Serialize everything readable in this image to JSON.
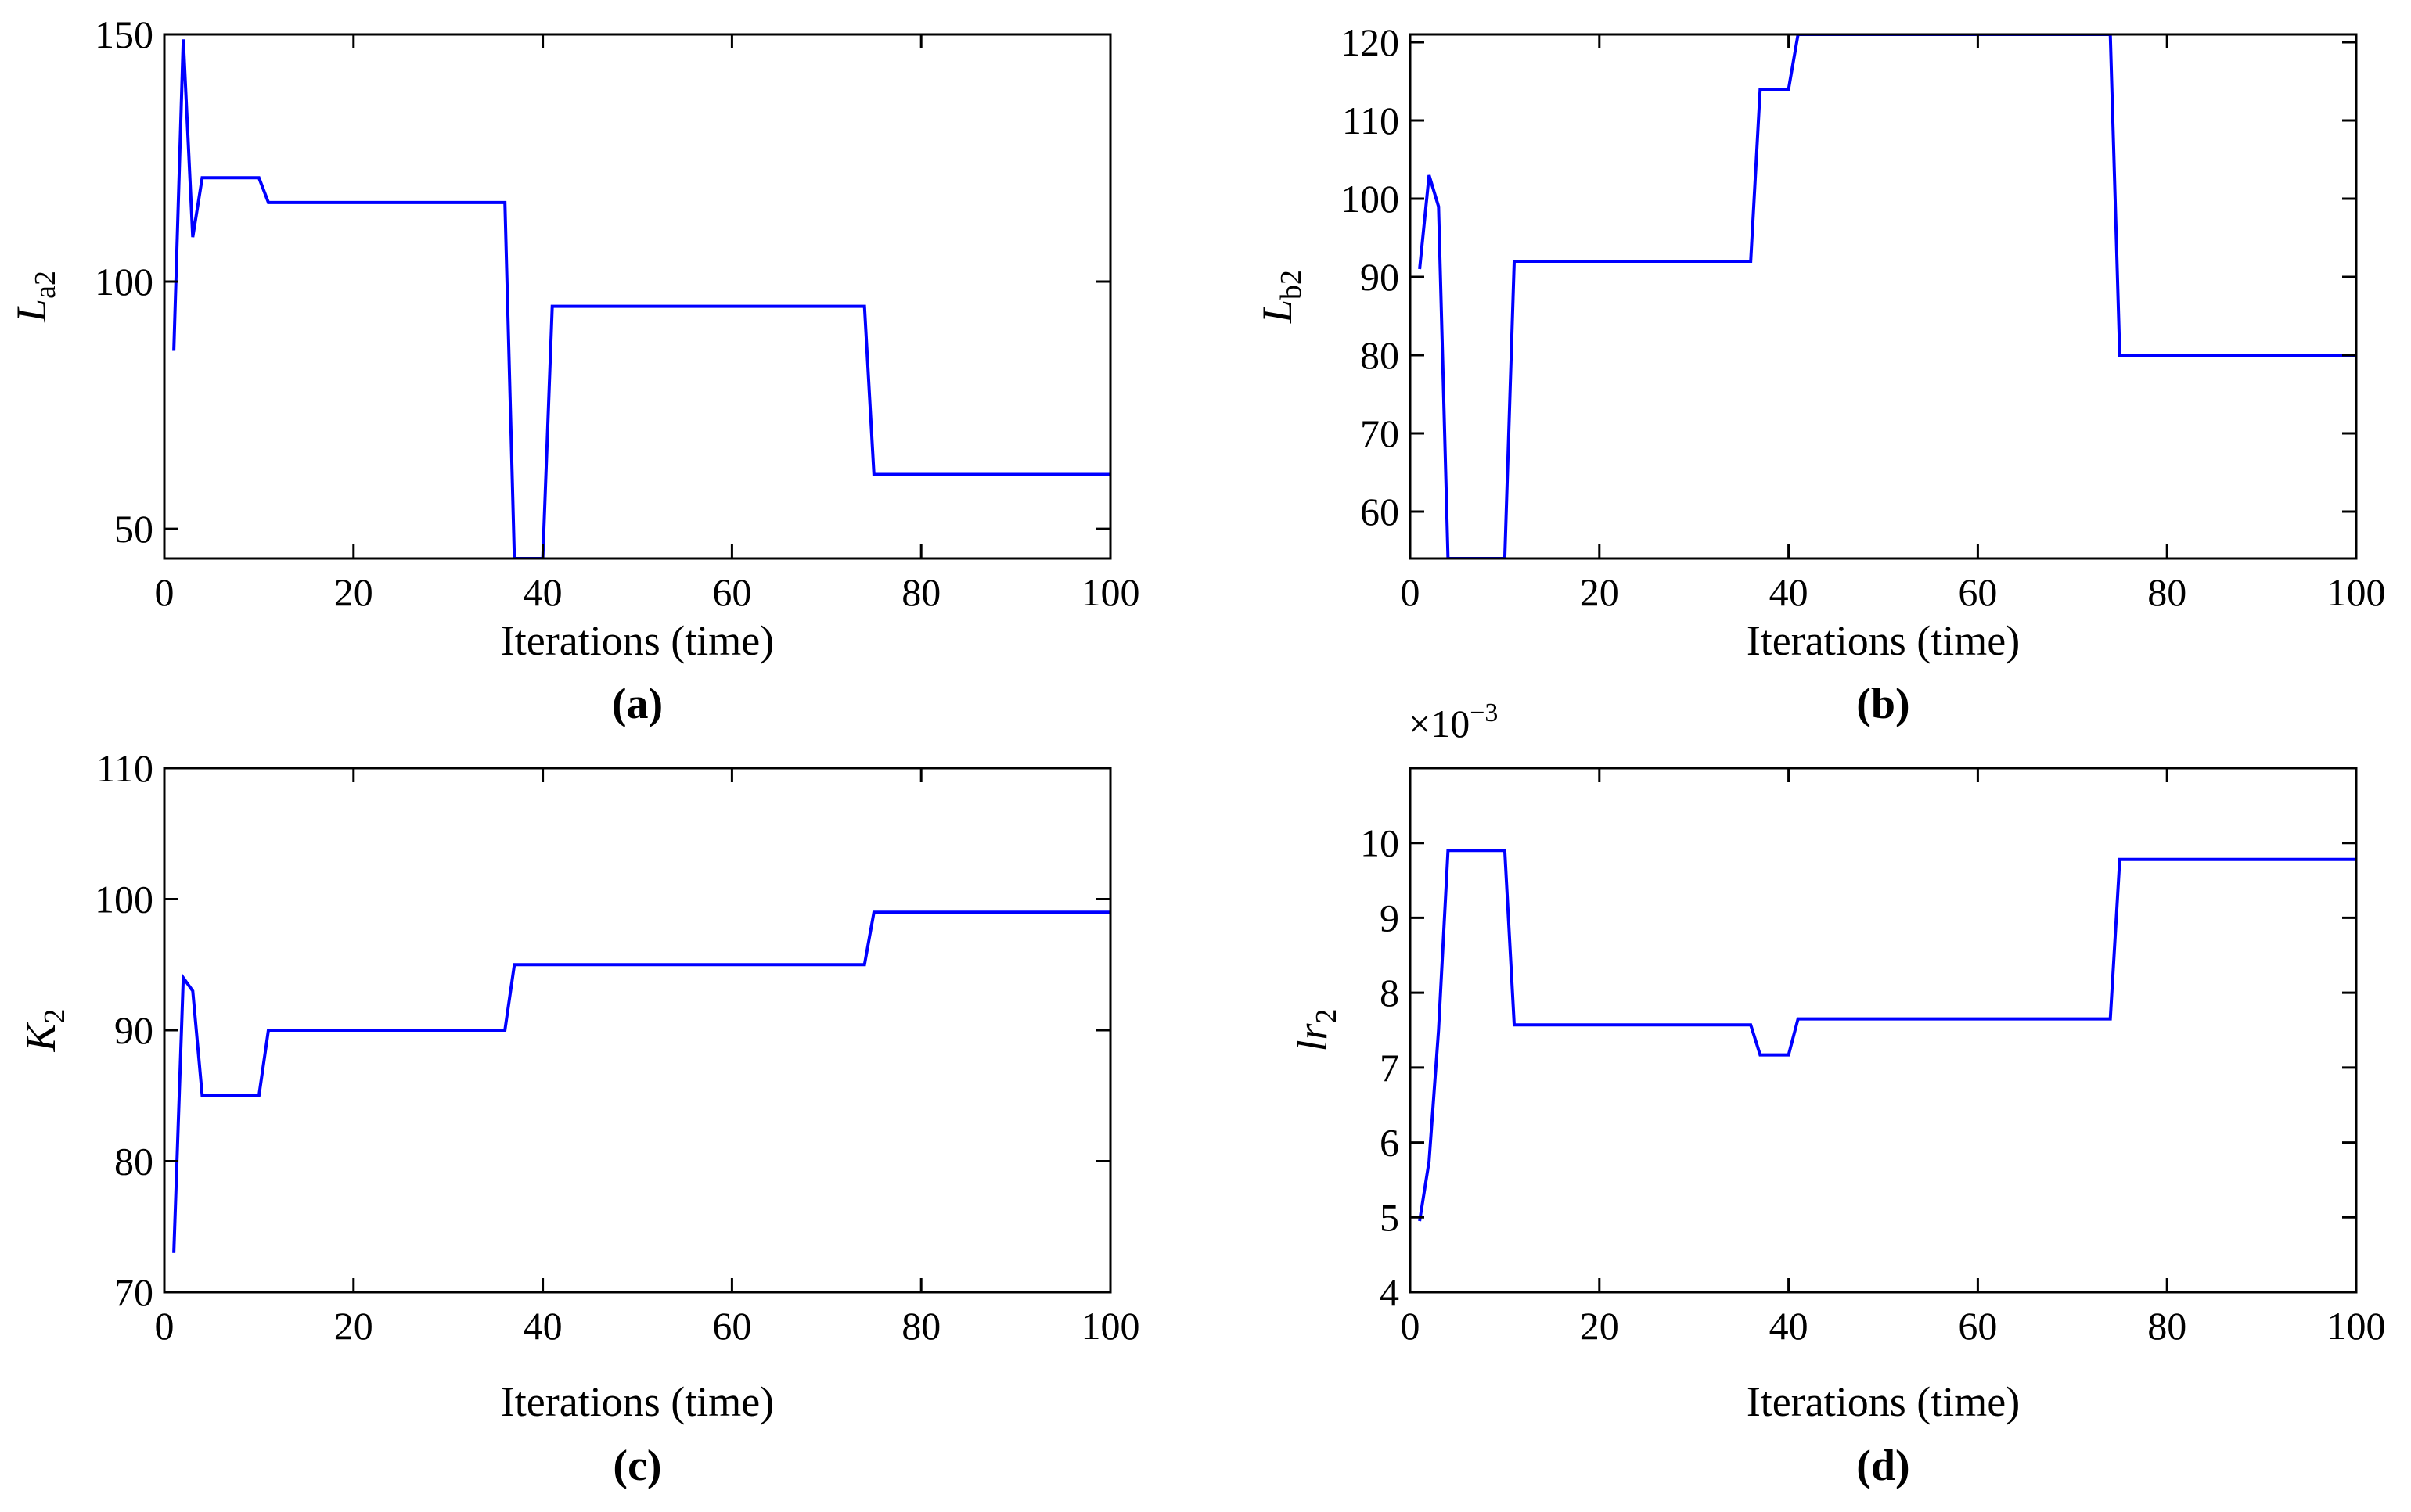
{
  "chart_data": [
    {
      "type": "line",
      "panel_label": "(a)",
      "title": "",
      "xlabel": "Iterations (time)",
      "ylabel": {
        "base": "L",
        "subscript": "a2"
      },
      "xlim": [
        0,
        100
      ],
      "ylim": [
        44,
        150
      ],
      "xticks": [
        0,
        20,
        40,
        60,
        80,
        100
      ],
      "yticks": [
        50,
        100,
        150
      ],
      "grid": false,
      "series": [
        {
          "name": "La2",
          "color": "#0000ff",
          "x": [
            1,
            2,
            3,
            4,
            10,
            11,
            36,
            37,
            39,
            40,
            41,
            74,
            75,
            100
          ],
          "y": [
            86,
            149,
            109,
            121,
            121,
            116,
            116,
            44,
            44,
            44,
            95,
            95,
            61,
            61
          ]
        }
      ]
    },
    {
      "type": "line",
      "panel_label": "(b)",
      "title": "",
      "xlabel": "Iterations (time)",
      "ylabel": {
        "base": "L",
        "subscript": "b2"
      },
      "xlim": [
        0,
        100
      ],
      "ylim": [
        54,
        121
      ],
      "xticks": [
        0,
        20,
        40,
        60,
        80,
        100
      ],
      "yticks": [
        60,
        70,
        80,
        90,
        100,
        110,
        120
      ],
      "grid": false,
      "series": [
        {
          "name": "Lb2",
          "color": "#0000ff",
          "x": [
            1,
            2,
            3,
            4,
            10,
            11,
            36,
            37,
            40,
            41,
            74,
            75,
            100
          ],
          "y": [
            91,
            103,
            99,
            54,
            54,
            92,
            92,
            114,
            114,
            121,
            121,
            80,
            80
          ]
        }
      ]
    },
    {
      "type": "line",
      "panel_label": "(c)",
      "title": "",
      "xlabel": "Iterations (time)",
      "ylabel": {
        "base": "K",
        "subscript": "2"
      },
      "xlim": [
        0,
        100
      ],
      "ylim": [
        70,
        110
      ],
      "xticks": [
        0,
        20,
        40,
        60,
        80,
        100
      ],
      "yticks": [
        70,
        80,
        90,
        100,
        110
      ],
      "grid": false,
      "series": [
        {
          "name": "K2",
          "color": "#0000ff",
          "x": [
            1,
            2,
            3,
            4,
            10,
            11,
            36,
            37,
            74,
            75,
            100
          ],
          "y": [
            73,
            94,
            93,
            85,
            85,
            90,
            90,
            95,
            95,
            99,
            99
          ]
        }
      ]
    },
    {
      "type": "line",
      "panel_label": "(d)",
      "title": "",
      "xlabel": "Iterations (time)",
      "ylabel": {
        "base": "lr",
        "subscript": "2"
      },
      "exponent_label": {
        "base": "×10",
        "superscript": "−3"
      },
      "xlim": [
        0,
        100
      ],
      "ylim": [
        4,
        11
      ],
      "xticks": [
        0,
        20,
        40,
        60,
        80,
        100
      ],
      "yticks": [
        4,
        5,
        6,
        7,
        8,
        9,
        10
      ],
      "grid": false,
      "series": [
        {
          "name": "lr2 (×10^-3)",
          "color": "#0000ff",
          "x": [
            1,
            2,
            3,
            4,
            10,
            11,
            36,
            37,
            39,
            40,
            41,
            74,
            75,
            100
          ],
          "y": [
            4.95,
            5.75,
            7.5,
            9.9,
            9.9,
            7.57,
            7.57,
            7.17,
            7.17,
            7.17,
            7.65,
            7.65,
            9.78,
            9.78
          ]
        }
      ]
    }
  ]
}
